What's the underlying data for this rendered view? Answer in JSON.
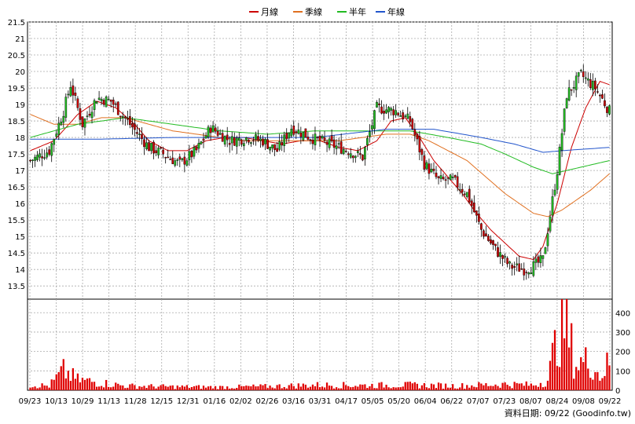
{
  "legend": [
    {
      "label": "月線",
      "color": "#cc0000"
    },
    {
      "label": "季線",
      "color": "#e07020"
    },
    {
      "label": "半年",
      "color": "#22bb22"
    },
    {
      "label": "年線",
      "color": "#2255cc"
    }
  ],
  "footer": "資料日期: 09/22  (Goodinfo.tw)",
  "chart_data": {
    "type": "candlestick",
    "x_tick_labels": [
      "09/23",
      "10/13",
      "10/29",
      "11/13",
      "11/28",
      "12/15",
      "12/31",
      "01/16",
      "02/02",
      "02/26",
      "03/16",
      "03/31",
      "04/17",
      "05/05",
      "05/20",
      "06/04",
      "06/22",
      "07/07",
      "07/23",
      "08/07",
      "08/24",
      "09/08",
      "09/22"
    ],
    "price_axis": {
      "ticks": [
        13.5,
        14,
        14.5,
        15,
        15.5,
        16,
        16.5,
        17,
        17.5,
        18,
        18.5,
        19,
        19.5,
        20,
        20.5,
        21,
        21.5
      ],
      "ylim": [
        13.1,
        21.5
      ]
    },
    "volume_axis": {
      "ticks": [
        0,
        100,
        200,
        300,
        400
      ],
      "ylim": [
        0,
        470
      ]
    },
    "price_keyframes": [
      [
        0,
        17.3
      ],
      [
        8,
        17.6
      ],
      [
        14,
        18.8
      ],
      [
        17,
        19.6
      ],
      [
        22,
        18.4
      ],
      [
        28,
        19.2
      ],
      [
        34,
        19.1
      ],
      [
        42,
        18.4
      ],
      [
        50,
        17.7
      ],
      [
        56,
        17.5
      ],
      [
        63,
        17.2
      ],
      [
        70,
        17.6
      ],
      [
        76,
        18.3
      ],
      [
        84,
        17.9
      ],
      [
        92,
        18.0
      ],
      [
        98,
        17.9
      ],
      [
        104,
        17.6
      ],
      [
        110,
        18.3
      ],
      [
        118,
        18.0
      ],
      [
        126,
        17.8
      ],
      [
        134,
        17.6
      ],
      [
        140,
        17.4
      ],
      [
        146,
        18.9
      ],
      [
        154,
        18.8
      ],
      [
        160,
        18.5
      ],
      [
        166,
        17.2
      ],
      [
        172,
        16.7
      ],
      [
        178,
        16.7
      ],
      [
        184,
        16.3
      ],
      [
        190,
        15.2
      ],
      [
        196,
        14.6
      ],
      [
        202,
        14.1
      ],
      [
        208,
        14.0
      ],
      [
        212,
        14.1
      ],
      [
        216,
        14.3
      ],
      [
        222,
        17.0
      ],
      [
        226,
        19.3
      ],
      [
        232,
        19.9
      ],
      [
        238,
        19.5
      ],
      [
        244,
        18.8
      ]
    ],
    "ma_keyframes": {
      "月線": [
        [
          0,
          17.6
        ],
        [
          10,
          17.9
        ],
        [
          20,
          18.7
        ],
        [
          28,
          19.1
        ],
        [
          36,
          18.9
        ],
        [
          44,
          18.4
        ],
        [
          50,
          17.9
        ],
        [
          58,
          17.6
        ],
        [
          66,
          17.6
        ],
        [
          74,
          17.9
        ],
        [
          82,
          18.0
        ],
        [
          90,
          18.0
        ],
        [
          98,
          17.9
        ],
        [
          106,
          17.8
        ],
        [
          114,
          17.9
        ],
        [
          122,
          17.9
        ],
        [
          130,
          17.7
        ],
        [
          138,
          17.6
        ],
        [
          146,
          17.9
        ],
        [
          152,
          18.5
        ],
        [
          158,
          18.6
        ],
        [
          164,
          18.0
        ],
        [
          170,
          17.3
        ],
        [
          176,
          16.8
        ],
        [
          182,
          16.3
        ],
        [
          188,
          15.7
        ],
        [
          194,
          15.2
        ],
        [
          200,
          14.8
        ],
        [
          206,
          14.4
        ],
        [
          212,
          14.3
        ],
        [
          216,
          14.7
        ],
        [
          222,
          16.0
        ],
        [
          228,
          17.7
        ],
        [
          234,
          18.9
        ],
        [
          240,
          19.7
        ],
        [
          244,
          19.6
        ]
      ],
      "季線": [
        [
          0,
          18.7
        ],
        [
          10,
          18.4
        ],
        [
          20,
          18.4
        ],
        [
          30,
          18.6
        ],
        [
          40,
          18.6
        ],
        [
          50,
          18.4
        ],
        [
          60,
          18.2
        ],
        [
          70,
          18.1
        ],
        [
          80,
          18.0
        ],
        [
          90,
          17.9
        ],
        [
          100,
          17.9
        ],
        [
          110,
          17.9
        ],
        [
          120,
          17.9
        ],
        [
          130,
          17.9
        ],
        [
          140,
          18.0
        ],
        [
          150,
          18.1
        ],
        [
          160,
          18.1
        ],
        [
          168,
          17.9
        ],
        [
          176,
          17.6
        ],
        [
          184,
          17.3
        ],
        [
          192,
          16.8
        ],
        [
          200,
          16.3
        ],
        [
          206,
          16.0
        ],
        [
          212,
          15.7
        ],
        [
          218,
          15.6
        ],
        [
          224,
          15.8
        ],
        [
          230,
          16.1
        ],
        [
          236,
          16.4
        ],
        [
          244,
          16.9
        ]
      ],
      "半年": [
        [
          0,
          18.0
        ],
        [
          20,
          18.4
        ],
        [
          40,
          18.6
        ],
        [
          60,
          18.4
        ],
        [
          80,
          18.2
        ],
        [
          100,
          18.1
        ],
        [
          120,
          18.2
        ],
        [
          140,
          18.2
        ],
        [
          160,
          18.2
        ],
        [
          176,
          18.0
        ],
        [
          190,
          17.8
        ],
        [
          200,
          17.5
        ],
        [
          212,
          17.1
        ],
        [
          220,
          16.9
        ],
        [
          232,
          17.1
        ],
        [
          244,
          17.3
        ]
      ],
      "年線": [
        [
          0,
          17.95
        ],
        [
          30,
          17.95
        ],
        [
          60,
          18.0
        ],
        [
          90,
          18.0
        ],
        [
          120,
          18.0
        ],
        [
          150,
          18.25
        ],
        [
          170,
          18.25
        ],
        [
          190,
          18.0
        ],
        [
          204,
          17.8
        ],
        [
          216,
          17.55
        ],
        [
          224,
          17.6
        ],
        [
          244,
          17.7
        ]
      ]
    },
    "volume_keyframes": [
      [
        0,
        30
      ],
      [
        8,
        25
      ],
      [
        14,
        110
      ],
      [
        20,
        60
      ],
      [
        40,
        25
      ],
      [
        60,
        20
      ],
      [
        80,
        18
      ],
      [
        100,
        22
      ],
      [
        120,
        30
      ],
      [
        140,
        28
      ],
      [
        160,
        30
      ],
      [
        180,
        25
      ],
      [
        200,
        35
      ],
      [
        212,
        30
      ],
      [
        218,
        60
      ],
      [
        224,
        430
      ],
      [
        230,
        150
      ],
      [
        236,
        170
      ],
      [
        240,
        80
      ],
      [
        244,
        160
      ]
    ],
    "n_days": 245
  }
}
